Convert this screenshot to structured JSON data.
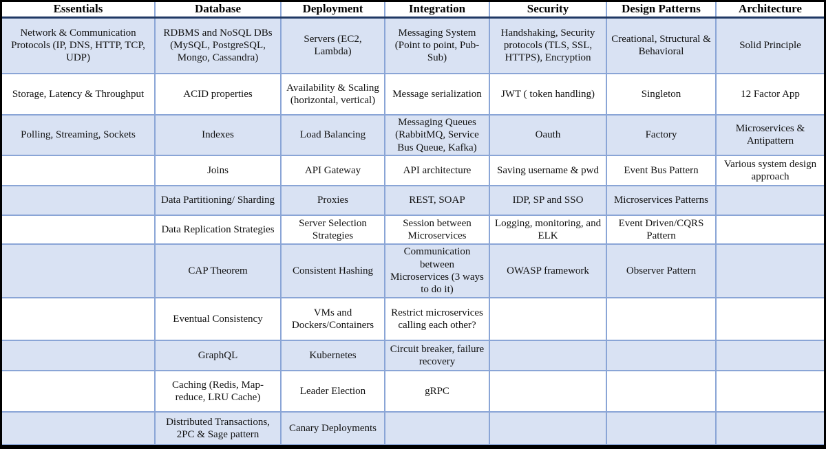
{
  "chart_data": {
    "type": "table",
    "columns": [
      "Essentials",
      "Database",
      "Deployment",
      "Integration",
      "Security",
      "Design Patterns",
      "Architecture"
    ],
    "rows": [
      [
        "Network & Communication Protocols (IP, DNS, HTTP, TCP, UDP)",
        "RDBMS and NoSQL DBs (MySQL, PostgreSQL, Mongo, Cassandra)",
        "Servers (EC2, Lambda)",
        "Messaging System (Point to point, Pub-Sub)",
        "Handshaking, Security protocols (TLS, SSL, HTTPS), Encryption",
        "Creational, Structural & Behavioral",
        "Solid Principle"
      ],
      [
        "Storage, Latency & Throughput",
        "ACID properties",
        "Availability & Scaling (horizontal, vertical)",
        "Message serialization",
        "JWT ( token handling)",
        "Singleton",
        "12 Factor App"
      ],
      [
        "Polling, Streaming, Sockets",
        "Indexes",
        "Load Balancing",
        "Messaging Queues (RabbitMQ, Service Bus Queue, Kafka)",
        "Oauth",
        "Factory",
        "Microservices & Antipattern"
      ],
      [
        "",
        "Joins",
        "API Gateway",
        "API architecture",
        "Saving username & pwd",
        "Event Bus Pattern",
        "Various system design approach"
      ],
      [
        "",
        "Data Partitioning/ Sharding",
        "Proxies",
        "REST, SOAP",
        "IDP, SP and SSO",
        "Microservices Patterns",
        ""
      ],
      [
        "",
        "Data Replication Strategies",
        "Server Selection Strategies",
        "Session between Microservices",
        "Logging, monitoring, and ELK",
        "Event Driven/CQRS Pattern",
        ""
      ],
      [
        "",
        "CAP Theorem",
        "Consistent Hashing",
        "Communication between Microservices (3 ways to do it)",
        "OWASP framework",
        "Observer Pattern",
        ""
      ],
      [
        "",
        "Eventual Consistency",
        "VMs and Dockers/Containers",
        "Restrict microservices calling each other?",
        "",
        "",
        ""
      ],
      [
        "",
        "GraphQL",
        "Kubernetes",
        "Circuit breaker, failure recovery",
        "",
        "",
        ""
      ],
      [
        "",
        "Caching (Redis, Map-reduce, LRU Cache)",
        "Leader Election",
        "gRPC",
        "",
        "",
        ""
      ],
      [
        "",
        "Distributed Transactions, 2PC & Sage pattern",
        "Canary Deployments",
        "",
        "",
        "",
        ""
      ]
    ],
    "colors": {
      "alt_row_fill": "#d9e2f3",
      "grid_line": "#8aa5d6",
      "header_divider": "#1f3864",
      "outer_border": "#000000",
      "header_bg": "#ffffff",
      "text": "#111111"
    },
    "layout": {
      "grid": "on",
      "alternating_rows": "even rows (1st, 3rd, ...) light blue, others white",
      "header_position": "top"
    }
  }
}
